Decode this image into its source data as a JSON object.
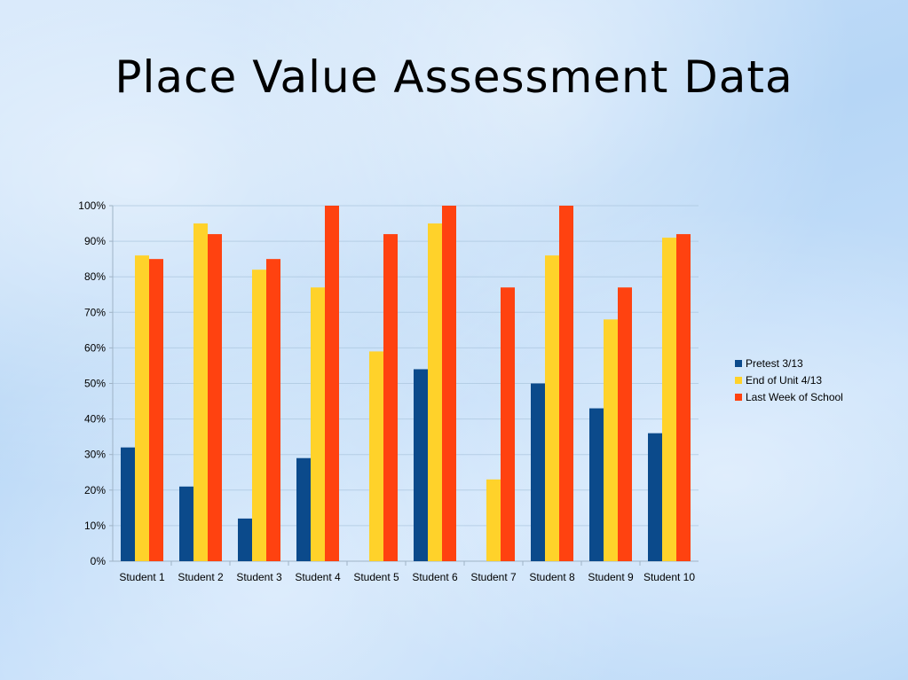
{
  "slide": {
    "title": "Place Value Assessment Data"
  },
  "chart_data": {
    "type": "bar",
    "title": "",
    "xlabel": "",
    "ylabel": "",
    "ylim": [
      0,
      100
    ],
    "y_ticks": [
      "0%",
      "10%",
      "20%",
      "30%",
      "40%",
      "50%",
      "60%",
      "70%",
      "80%",
      "90%",
      "100%"
    ],
    "y_tick_values": [
      0,
      10,
      20,
      30,
      40,
      50,
      60,
      70,
      80,
      90,
      100
    ],
    "grid": true,
    "legend_position": "right",
    "categories": [
      "Student 1",
      "Student 2",
      "Student 3",
      "Student 4",
      "Student 5",
      "Student 6",
      "Student 7",
      "Student 8",
      "Student 9",
      "Student 10"
    ],
    "series": [
      {
        "name": "Pretest 3/13",
        "color": "#0b4a8b",
        "values": [
          32,
          21,
          12,
          29,
          0,
          54,
          0,
          50,
          43,
          36
        ]
      },
      {
        "name": "End of Unit 4/13",
        "color": "#ffd22a",
        "values": [
          86,
          95,
          82,
          77,
          59,
          95,
          23,
          86,
          68,
          91
        ]
      },
      {
        "name": "Last Week of  School",
        "color": "#ff4210",
        "values": [
          85,
          92,
          85,
          100,
          92,
          100,
          77,
          100,
          77,
          92
        ]
      }
    ]
  }
}
